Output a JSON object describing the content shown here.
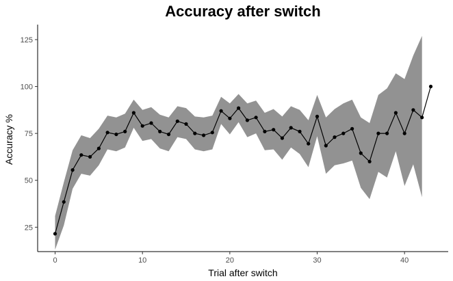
{
  "chart_data": {
    "type": "line",
    "title": "Accuracy after switch",
    "xlabel": "Trial after switch",
    "ylabel": "Accuracy %",
    "xlim": [
      -2,
      45
    ],
    "ylim": [
      12,
      133
    ],
    "xticks": [
      0,
      10,
      20,
      30,
      40
    ],
    "yticks": [
      25,
      50,
      75,
      100,
      125
    ],
    "grid": false,
    "legend": "none",
    "colors": {
      "line": "#000000",
      "ribbon": "#8c8c8c"
    },
    "x": [
      0,
      1,
      2,
      3,
      4,
      5,
      6,
      7,
      8,
      9,
      10,
      11,
      12,
      13,
      14,
      15,
      16,
      17,
      18,
      19,
      20,
      21,
      22,
      23,
      24,
      25,
      26,
      27,
      28,
      29,
      30,
      31,
      32,
      33,
      34,
      35,
      36,
      37,
      38,
      39,
      40,
      41,
      42,
      43
    ],
    "y": [
      21.5,
      38.5,
      55.5,
      63.5,
      62.5,
      67,
      75.5,
      74.5,
      76,
      86,
      79,
      80.5,
      76,
      74.5,
      81.5,
      80,
      75,
      74,
      75.5,
      87,
      83,
      88.5,
      82,
      83.5,
      76,
      77,
      72.5,
      78,
      76,
      69.5,
      84,
      68.5,
      73,
      75,
      77.5,
      64.5,
      60,
      75,
      75,
      86,
      75,
      87.5,
      83.5,
      100
    ],
    "ymin": [
      13,
      26,
      45.5,
      53.5,
      52.5,
      58,
      66.5,
      65.5,
      67.5,
      78,
      71,
      72,
      67,
      65.5,
      73,
      72,
      66.5,
      65.5,
      66.5,
      80,
      74.5,
      81,
      73,
      75,
      66,
      66.5,
      61,
      67.5,
      64,
      57,
      73.5,
      53.5,
      58,
      59,
      60.5,
      46,
      40,
      54.5,
      51.5,
      65.5,
      47,
      58.5,
      41,
      null
    ],
    "ymax": [
      31,
      49,
      66,
      74,
      72.5,
      77.5,
      84.5,
      83.5,
      85.5,
      93,
      87.5,
      89,
      85,
      83.5,
      89.5,
      88.5,
      84,
      83.5,
      84.5,
      94.5,
      91,
      96,
      91,
      92.5,
      86,
      88,
      84,
      89.5,
      87.5,
      82,
      95.5,
      83.5,
      88,
      91,
      93,
      83.5,
      80.5,
      95.5,
      99,
      107,
      104,
      116.5,
      127,
      null
    ]
  }
}
